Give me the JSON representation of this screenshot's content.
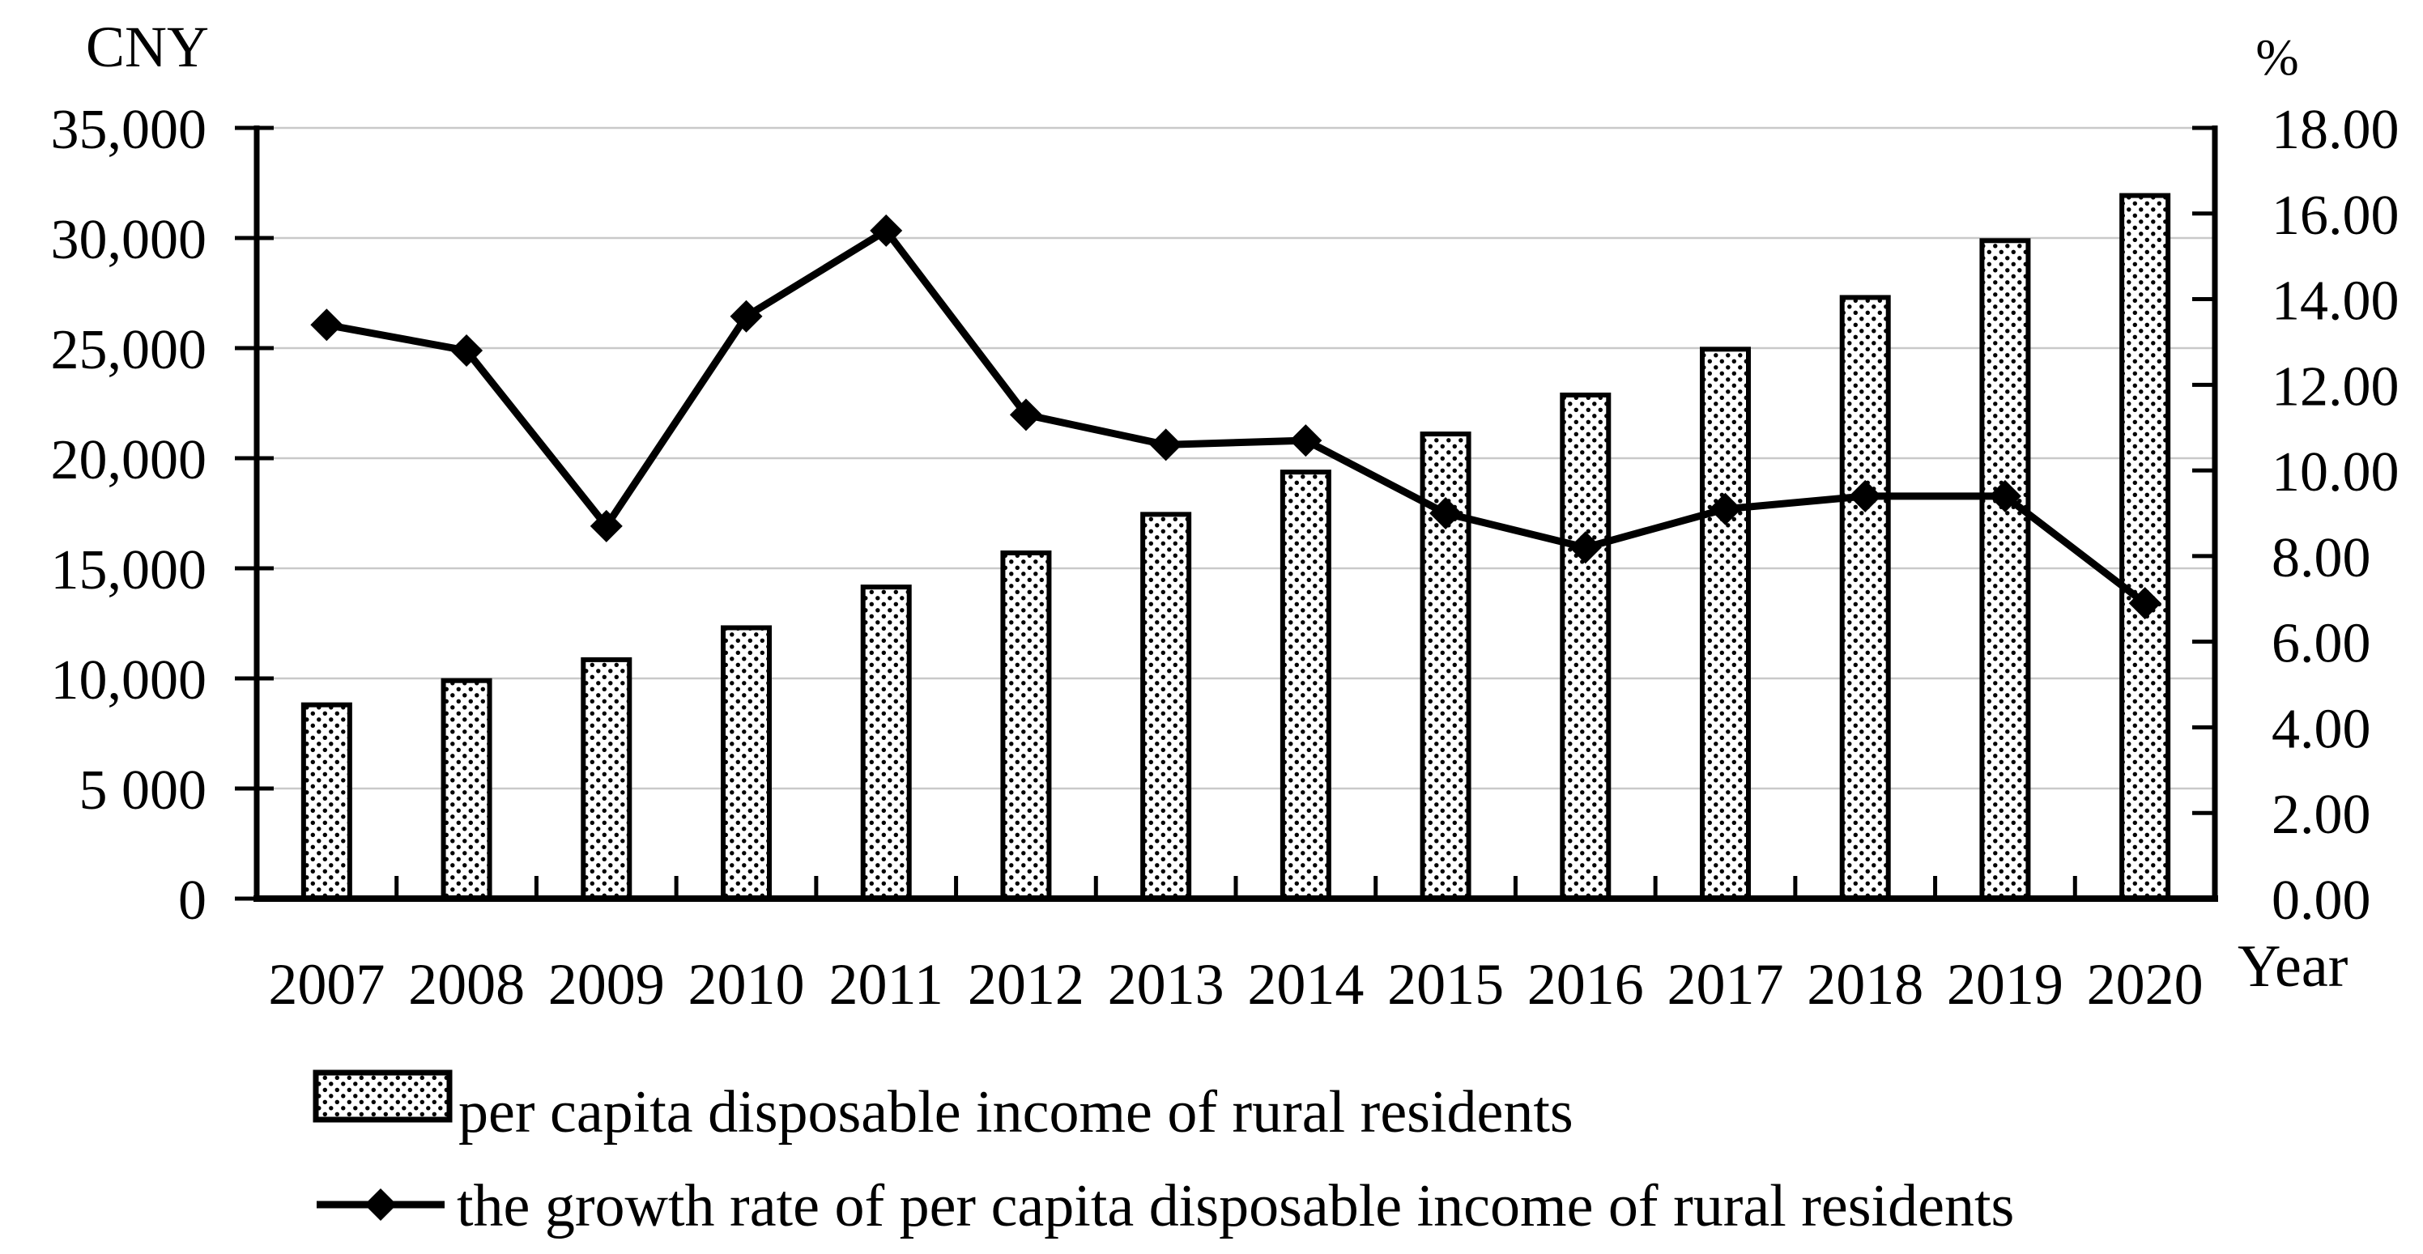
{
  "figure": {
    "background": "#ffffff",
    "text_color": "#000000",
    "grid_color": "#c9c9c9",
    "axis_color": "#000000"
  },
  "chart_data": {
    "type": "bar",
    "title": "",
    "categories": [
      "2007",
      "2008",
      "2009",
      "2010",
      "2011",
      "2012",
      "2013",
      "2014",
      "2015",
      "2016",
      "2017",
      "2018",
      "2019",
      "2020"
    ],
    "series": [
      {
        "name": "per capita disposable income of rural residents",
        "type": "bar",
        "axis": "left",
        "style": "white fill with black dot pattern, black border",
        "values": [
          8800,
          9900,
          10850,
          12300,
          14150,
          15700,
          17450,
          19370,
          21100,
          22870,
          24950,
          27300,
          29880,
          31930
        ]
      },
      {
        "name": "the growth rate of per capita disposable income of rural residents",
        "type": "line",
        "axis": "right",
        "style": "black line with black diamond markers",
        "values": [
          13.4,
          12.8,
          8.7,
          13.6,
          15.6,
          11.3,
          10.6,
          10.7,
          9.0,
          8.2,
          9.1,
          9.4,
          9.4,
          6.9
        ]
      }
    ],
    "left_axis": {
      "title": "CNY",
      "min": 0,
      "max": 35000,
      "step": 5000,
      "tick_labels": [
        "0",
        "5 000",
        "10,000",
        "15,000",
        "20,000",
        "25,000",
        "30,000",
        "35,000"
      ]
    },
    "right_axis": {
      "title": "%",
      "min": 0,
      "max": 18,
      "step": 2,
      "tick_labels": [
        "0.00",
        "2.00",
        "4.00",
        "6.00",
        "8.00",
        "10.00",
        "12.00",
        "14.00",
        "16.00",
        "18.00"
      ]
    },
    "x_axis": {
      "title": "Year"
    },
    "grid": "horizontal gridlines at left-axis 5,000 intervals",
    "legend_position": "bottom-left"
  }
}
